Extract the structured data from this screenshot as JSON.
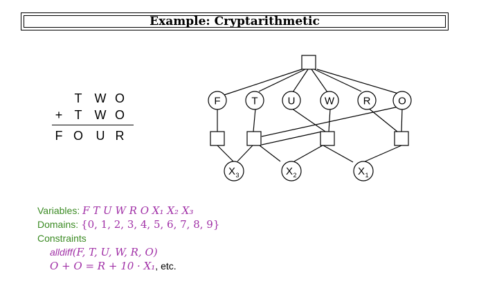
{
  "title": "Example: Cryptarithmetic",
  "puzzle": {
    "row1": [
      "T",
      "W",
      "O"
    ],
    "row2_op": "+",
    "row2": [
      "T",
      "W",
      "O"
    ],
    "result": [
      "F",
      "O",
      "U",
      "R"
    ]
  },
  "graph": {
    "top_nodes": [
      {
        "label": "F"
      },
      {
        "label": "T"
      },
      {
        "label": "U"
      },
      {
        "label": "W"
      },
      {
        "label": "R"
      },
      {
        "label": "O"
      }
    ],
    "carry_nodes": [
      {
        "label": "X",
        "sub": "3"
      },
      {
        "label": "X",
        "sub": "2"
      },
      {
        "label": "X",
        "sub": "1"
      }
    ]
  },
  "info": {
    "variables_label": "Variables:",
    "variables_value": "F T U W R O X₁ X₂ X₃",
    "domains_label": "Domains:",
    "domains_value": "{0, 1, 2, 3, 4, 5, 6, 7, 8, 9}",
    "constraints_label": "Constraints",
    "alldiff_name": "alldiff",
    "alldiff_args": "(F, T, U, W, R, O)",
    "equation": "O + O = R + 10 · X₁",
    "equation_suffix": ", etc."
  }
}
